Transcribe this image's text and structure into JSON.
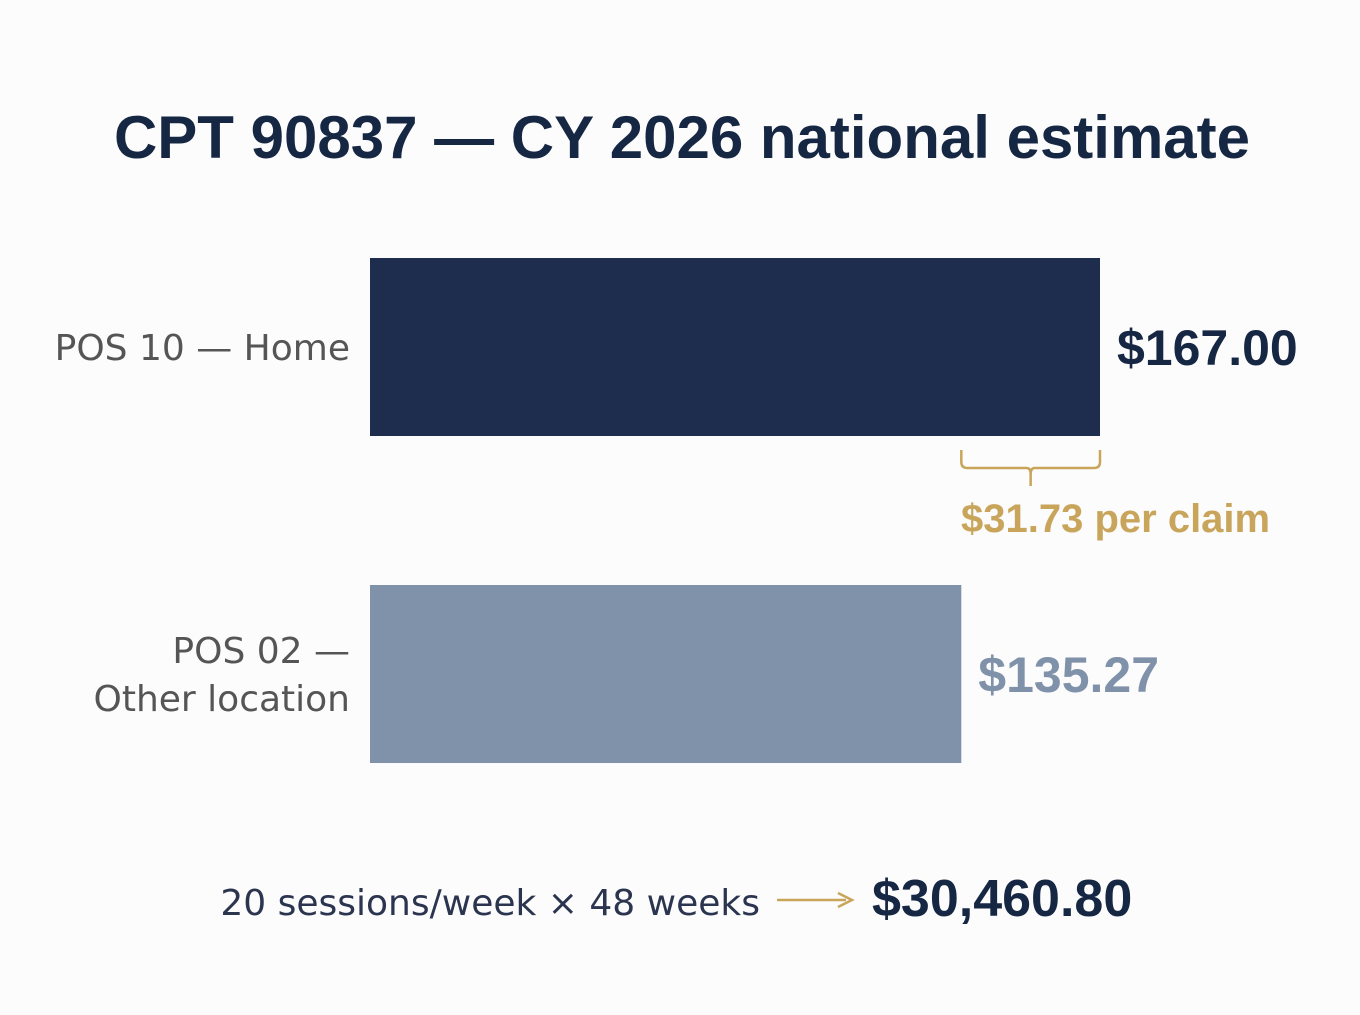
{
  "chart_data": {
    "type": "bar",
    "orientation": "horizontal",
    "title": "CPT 90837 — CY 2026 national estimate",
    "categories": [
      [
        "POS 10 — Home"
      ],
      [
        "POS 02 —",
        "Other location"
      ]
    ],
    "values": [
      167.0,
      135.27
    ],
    "value_labels": [
      "$167.00",
      "$135.27"
    ],
    "xlim": [
      0,
      167
    ],
    "grid": false,
    "legend": "none",
    "annotations": {
      "difference_label": "$31.73 per claim",
      "footer_text": "20 sessions/week × 48 weeks",
      "footer_total": "$30,460.80"
    }
  },
  "colors": {
    "bar_primary": "#1e2d4d",
    "bar_secondary": "#8091aa",
    "accent_gold": "#c9a55c",
    "title": "#162744",
    "category_text": "#555555",
    "value_primary": "#162744",
    "value_secondary": "#8091aa",
    "footer_text": "#2b3550"
  }
}
